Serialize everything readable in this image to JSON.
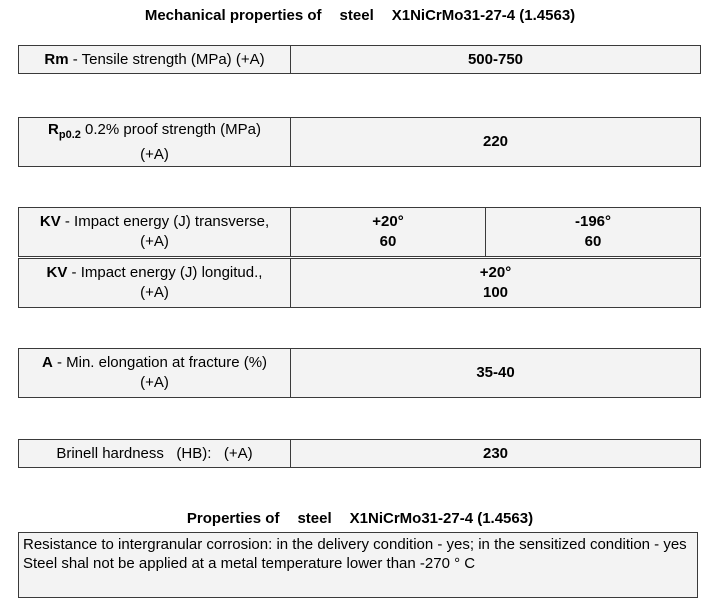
{
  "title1": {
    "prefix": "Mechanical properties of",
    "word": "steel",
    "grade": "X1NiCrMo31-27-4 (1.4563)"
  },
  "rm": {
    "symbol": "Rm",
    "desc": " - Tensile strength (MPa) (+A)",
    "value": "500-750"
  },
  "rp": {
    "symbol": "R",
    "sub": "p0.2",
    "desc_line1": " 0.2% proof strength (MPa)",
    "desc_line2": "(+A)",
    "value": "220"
  },
  "kv_trans": {
    "symbol": "KV",
    "desc_line1": " - Impact energy (J) transverse,",
    "desc_line2": "(+A)",
    "temp1": "+20°",
    "val1": "60",
    "temp2": "-196°",
    "val2": "60"
  },
  "kv_long": {
    "symbol": "KV",
    "desc_line1": " - Impact energy (J) longitud.,",
    "desc_line2": "(+A)",
    "temp": "+20°",
    "val": "100"
  },
  "elong": {
    "symbol": "A",
    "desc_line1": " - Min. elongation at fracture (%)",
    "desc_line2": "(+A)",
    "value": "35-40"
  },
  "hb": {
    "label": "Brinell hardness   (HB):   (+A)",
    "value": "230"
  },
  "title2": {
    "prefix": "Properties of",
    "word": "steel",
    "grade": "X1NiCrMo31-27-4 (1.4563)"
  },
  "notes": {
    "line1": "Resistance to intergranular corrosion: in the delivery condition - yes; in the sensitized condition - yes",
    "line2": "Steel shal not be applied at a metal temperature lower than -270 ° C"
  }
}
